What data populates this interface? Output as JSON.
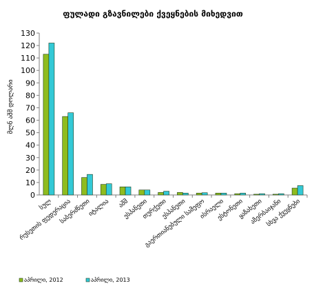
{
  "chart_data": {
    "type": "bar",
    "title": "ფულადი გზავნილები ქვეყნების მიხედვით",
    "xlabel": "",
    "ylabel": "მლნ აშშ დოლარი",
    "ylim": [
      0,
      130
    ],
    "yticks": [
      0,
      10,
      20,
      30,
      40,
      50,
      60,
      70,
      80,
      90,
      100,
      110,
      120,
      130
    ],
    "grid": false,
    "legend_position": "bottom",
    "categories": [
      "სულ",
      "რუსეთის ფედერაცია",
      "საბერძნეთი",
      "იტალია",
      "აშშ",
      "ესპანეთი",
      "თურქეთი",
      "ესპანეთი",
      "გაერთიანებული სამეფო",
      "ისრაელი",
      "ესტონეთი",
      "ყაზახეთი",
      "აზერბაიჯანი",
      "სხვა ქვეყნები"
    ],
    "series": [
      {
        "name": "აპრილი, 2012",
        "color": "#8fbc1f",
        "values": [
          113,
          63,
          14,
          8.5,
          6.5,
          4,
          2,
          2,
          1.5,
          1.5,
          1,
          0.6,
          0.6,
          5.5
        ]
      },
      {
        "name": "აპრილი, 2013",
        "color": "#33c9d6",
        "values": [
          122,
          66,
          16.5,
          9,
          6.5,
          4,
          3,
          1.5,
          1.8,
          1.5,
          1.5,
          1,
          1,
          7.5
        ]
      }
    ]
  }
}
